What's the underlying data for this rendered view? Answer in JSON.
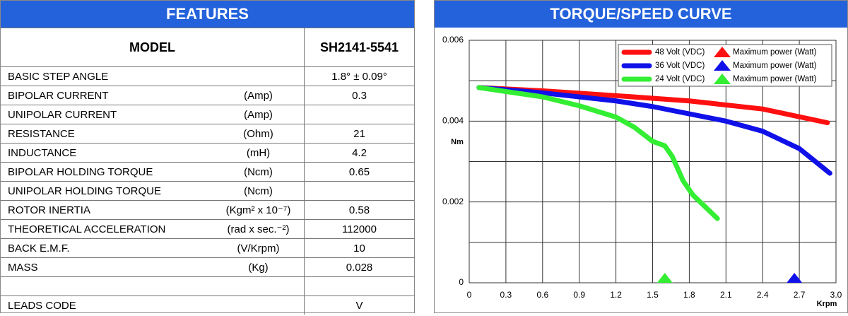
{
  "features": {
    "title": "FEATURES",
    "header": [
      "MODEL",
      "SH2141-5541"
    ],
    "rows": [
      [
        "BASIC STEP ANGLE",
        null,
        "1.8° ± 0.09°"
      ],
      [
        "BIPOLAR CURRENT",
        "(Amp)",
        "0.3"
      ],
      [
        "UNIPOLAR CURRENT",
        "(Amp)",
        null
      ],
      [
        "RESISTANCE",
        "(Ohm)",
        "21"
      ],
      [
        "INDUCTANCE",
        "(mH)",
        "4.2"
      ],
      [
        "BIPOLAR HOLDING TORQUE",
        "(Ncm)",
        "0.65"
      ],
      [
        "UNIPOLAR HOLDING TORQUE",
        "(Ncm)",
        null
      ],
      [
        "ROTOR INERTIA",
        "(Kgm² x 10⁻⁷)",
        "0.58"
      ],
      [
        "THEORETICAL ACCELERATION",
        "(rad x sec.⁻²)",
        "112000"
      ],
      [
        "BACK E.M.F.",
        "(V/Krpm)",
        "10"
      ],
      [
        "MASS",
        "(Kg)",
        "0.028"
      ],
      [
        null,
        null,
        null
      ],
      [
        "LEADS CODE",
        null,
        "V"
      ]
    ]
  },
  "chart_data": {
    "type": "line",
    "title": "TORQUE/SPEED CURVE",
    "y_label": "Nm",
    "x_label": "Krpm",
    "xlim": [
      0,
      3
    ],
    "xticks": [
      0,
      0.3,
      0.6,
      0.9,
      1.2,
      1.5,
      1.8,
      2.1,
      2.4,
      2.7,
      {
        "value": 3,
        "label": "3.0"
      }
    ],
    "ylim": [
      0,
      0.006
    ],
    "yticks": [
      0,
      0.002,
      0.004,
      0.006
    ],
    "y_minor_ticks": [
      0.001,
      0.003,
      0.005
    ],
    "grid": true,
    "legend": "upper right",
    "series": [
      {
        "name": "48 Volt (VDC)",
        "marker_label": "Maximum power (Watt)",
        "color": "#ff1010",
        "x": [
          0.08,
          0.6,
          1.2,
          1.8,
          2.4,
          2.93
        ],
        "values": [
          0.00483,
          0.00475,
          0.00463,
          0.0045,
          0.0043,
          0.00396
        ]
      },
      {
        "name": "36 Volt (VDC)",
        "marker_label": "Maximum power (Watt)",
        "color": "#1010e8",
        "max_power_x": 2.66,
        "x": [
          0.08,
          0.6,
          1.2,
          1.5,
          2.1,
          2.4,
          2.7,
          2.95
        ],
        "values": [
          0.00483,
          0.0047,
          0.0045,
          0.00436,
          0.004,
          0.00375,
          0.00332,
          0.00271
        ]
      },
      {
        "name": "24 Volt (VDC)",
        "marker_label": "Maximum power (Watt)",
        "color": "#33ee33",
        "max_power_x": 1.6,
        "x": [
          0.08,
          0.6,
          0.9,
          1.2,
          1.35,
          1.5,
          1.6,
          1.66,
          1.75,
          1.83,
          2.03
        ],
        "values": [
          0.00483,
          0.0046,
          0.00438,
          0.0041,
          0.00385,
          0.0035,
          0.00339,
          0.00313,
          0.00252,
          0.00217,
          0.00159
        ]
      }
    ]
  }
}
